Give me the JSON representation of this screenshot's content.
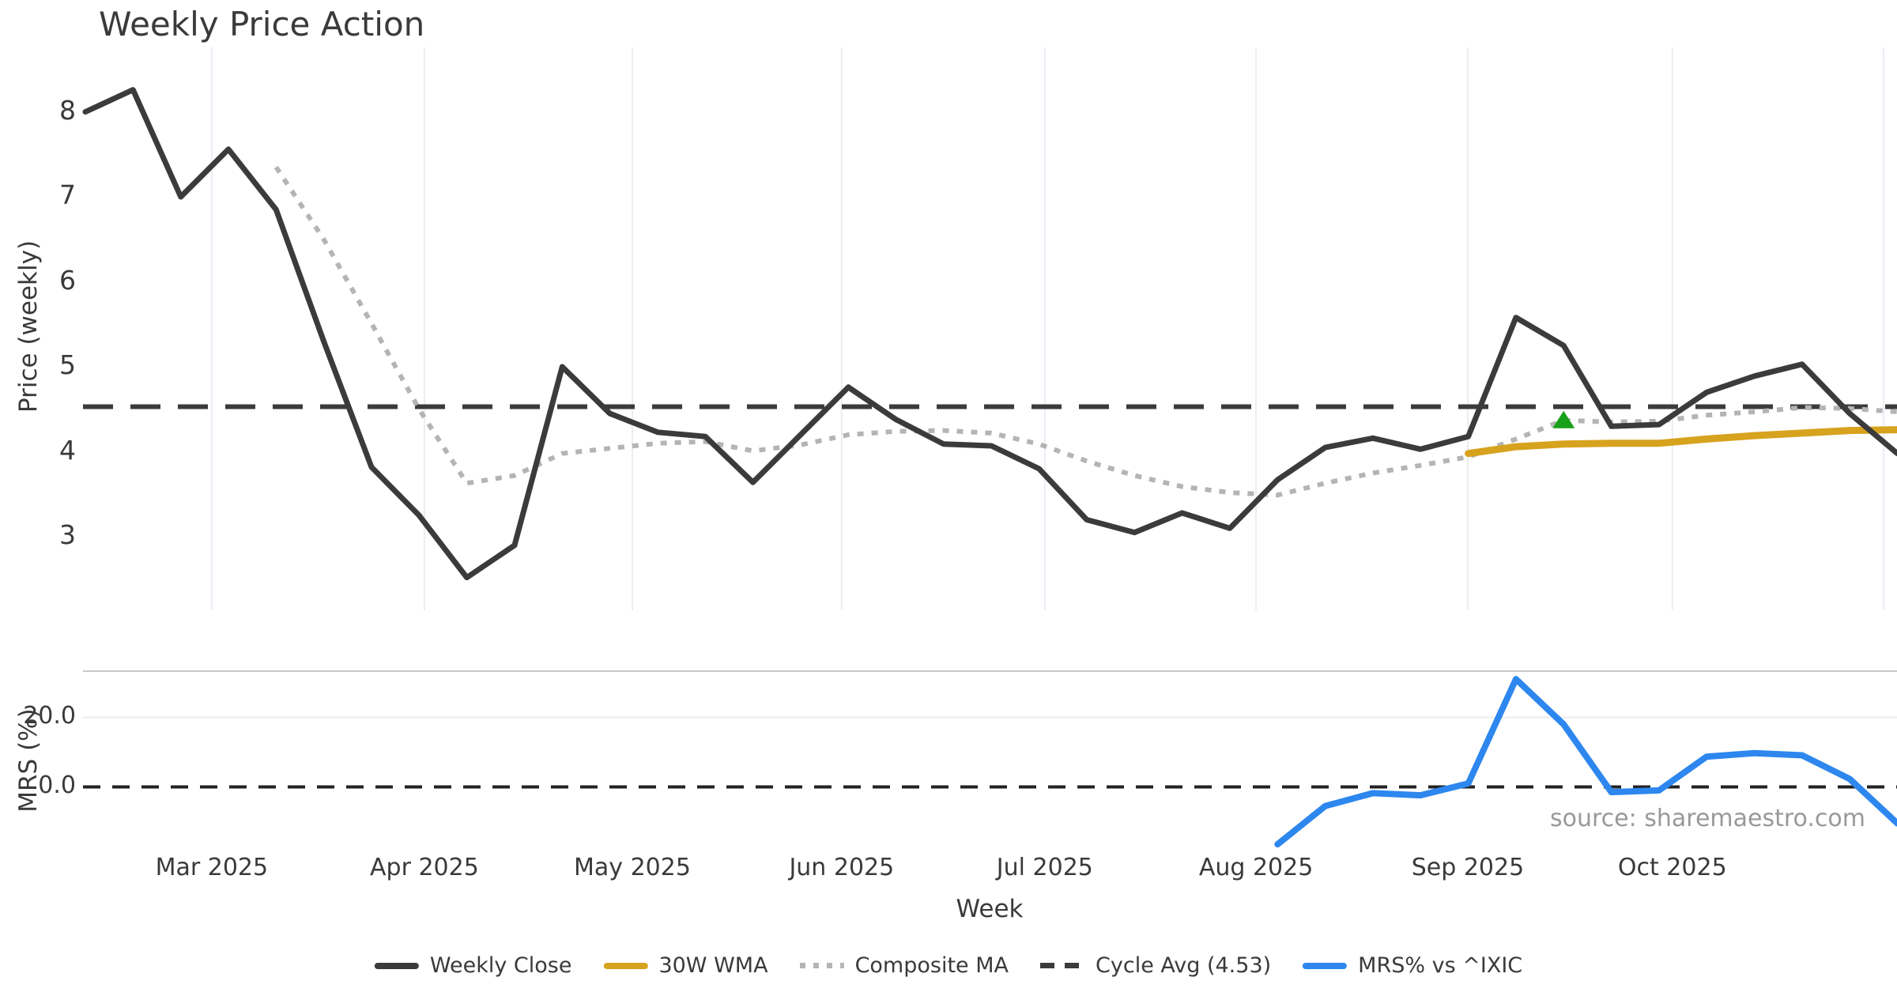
{
  "title": "Weekly Price Action",
  "x_label": "Week",
  "source": "source: sharemaestro.com",
  "main_panel": {
    "y_label": "Price (weekly)",
    "y_ticks": [
      "8",
      "7",
      "6",
      "5",
      "4",
      "3"
    ],
    "y_tick_values": [
      8,
      7,
      6,
      5,
      4,
      3
    ]
  },
  "mrs_panel": {
    "y_label": "MRS (%)",
    "y_ticks": [
      "20.0",
      "0.0"
    ],
    "y_tick_values": [
      20,
      0
    ]
  },
  "colors": {
    "weekly_close": "#3b3b3b",
    "wma_30w": "#d7a21e",
    "composite_ma": "#b4b4b4",
    "cycle_avg": "#3b3b3b",
    "mrs_line": "#2d87ee",
    "zero_line": "#222222",
    "marker_green": "#18a018",
    "gridline": "#e9edf4",
    "mrs_gridline": "#ececec",
    "separator": "#c8c8c8",
    "source_text": "#999999"
  },
  "legend": {
    "items": [
      {
        "key": "weekly_close",
        "label": "Weekly Close",
        "style": "solid"
      },
      {
        "key": "wma_30w",
        "label": "30W WMA",
        "style": "solid"
      },
      {
        "key": "composite_ma",
        "label": "Composite MA",
        "style": "dotted"
      },
      {
        "key": "cycle_avg",
        "label": "Cycle Avg (4.53)",
        "style": "dashed"
      },
      {
        "key": "mrs_line",
        "label": "MRS% vs ^IXIC",
        "style": "solid"
      }
    ]
  },
  "chart_data": {
    "type": "line",
    "title": "Weekly Price Action",
    "xlabel": "Week",
    "x_unit": "week_index",
    "weeks_total": 39,
    "x_month_ticks": [
      {
        "label": "Mar 2025",
        "week": 2.65
      },
      {
        "label": "Apr 2025",
        "week": 7.11
      },
      {
        "label": "May 2025",
        "week": 11.47
      },
      {
        "label": "Jun 2025",
        "week": 15.86
      },
      {
        "label": "Jul 2025",
        "week": 20.12
      },
      {
        "label": "Aug 2025",
        "week": 24.55
      },
      {
        "label": "Sep 2025",
        "week": 28.99
      },
      {
        "label": "Oct 2025",
        "week": 33.28
      },
      {
        "label": "",
        "week": 37.71
      }
    ],
    "panels": [
      {
        "name": "price",
        "ylabel": "Price (weekly)",
        "ylim": [
          2.135,
          8.805
        ],
        "yticks": [
          8,
          7,
          6,
          5,
          4,
          3
        ],
        "grid": "vertical-months",
        "series": [
          {
            "name": "Weekly Close",
            "style": "solid",
            "color_key": "weekly_close",
            "start_week": 0,
            "values": [
              8.0,
              8.26,
              7.0,
              7.56,
              6.85,
              5.3,
              3.82,
              3.25,
              2.52,
              2.9,
              5.0,
              4.45,
              4.23,
              4.18,
              3.64,
              4.2,
              4.76,
              4.38,
              4.09,
              4.07,
              3.8,
              3.2,
              3.05,
              3.28,
              3.1,
              3.67,
              4.05,
              4.16,
              4.03,
              4.18,
              5.58,
              5.25,
              4.3,
              4.32,
              4.7,
              4.89,
              5.03,
              4.45,
              3.98
            ]
          },
          {
            "name": "30W WMA",
            "style": "solid",
            "color_key": "wma_30w",
            "start_week": 29,
            "values": [
              3.98,
              4.06,
              4.09,
              4.1,
              4.1,
              4.15,
              4.19,
              4.22,
              4.25,
              4.26
            ]
          },
          {
            "name": "Composite MA",
            "style": "dotted",
            "color_key": "composite_ma",
            "start_week": 4,
            "values": [
              7.35,
              6.5,
              5.51,
              4.5,
              3.63,
              3.72,
              3.98,
              4.04,
              4.1,
              4.12,
              4.01,
              4.08,
              4.2,
              4.24,
              4.25,
              4.22,
              4.09,
              3.89,
              3.72,
              3.59,
              3.52,
              3.49,
              3.63,
              3.75,
              3.84,
              3.94,
              4.15,
              4.37,
              4.35,
              4.36,
              4.43,
              4.47,
              4.52,
              4.51,
              4.47
            ]
          },
          {
            "name": "Cycle Avg (4.53)",
            "style": "dashed-hline",
            "color_key": "cycle_avg",
            "value": 4.53
          }
        ],
        "markers": [
          {
            "shape": "triangle-up",
            "color_key": "marker_green",
            "week": 31,
            "value": 4.37
          }
        ]
      },
      {
        "name": "mrs",
        "ylabel": "MRS (%)",
        "ylim": [
          -19.2,
          33.3
        ],
        "yticks": [
          20,
          0
        ],
        "series": [
          {
            "name": "MRS% vs ^IXIC",
            "style": "solid",
            "color_key": "mrs_line",
            "start_week": 25,
            "values": [
              -16.5,
              -5.5,
              -1.8,
              -2.4,
              1.0,
              31.0,
              18.0,
              -1.5,
              -1.0,
              8.7,
              9.7,
              9.1,
              2.3,
              -10.5
            ]
          },
          {
            "name": "Zero line",
            "style": "dashed-hline",
            "color_key": "zero_line",
            "value": 0
          }
        ]
      }
    ]
  }
}
